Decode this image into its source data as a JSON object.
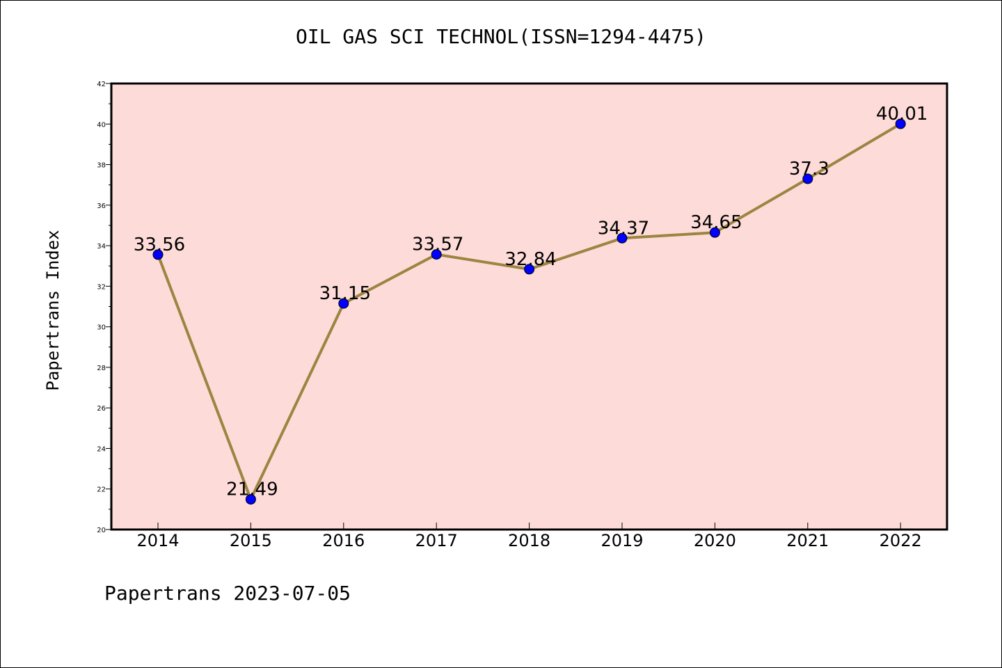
{
  "chart_data": {
    "type": "line",
    "title": "OIL GAS SCI TECHNOL(ISSN=1294-4475)",
    "ylabel": "Papertrans Index",
    "xlabel": "",
    "categories": [
      "2014",
      "2015",
      "2016",
      "2017",
      "2018",
      "2019",
      "2020",
      "2021",
      "2022"
    ],
    "values": [
      33.56,
      21.49,
      31.15,
      33.57,
      32.84,
      34.37,
      34.65,
      37.3,
      40.01
    ],
    "data_labels": [
      "33.56",
      "21.49",
      "31.15",
      "33.57",
      "32.84",
      "34.37",
      "34.65",
      "37.3",
      "40.01"
    ],
    "ylim": [
      20,
      42
    ],
    "yticks": [
      "20",
      "22",
      "24",
      "26",
      "28",
      "30",
      "32",
      "34",
      "36",
      "38",
      "40",
      "42"
    ],
    "grid": false,
    "colors": {
      "plot_background": "#fddbd8",
      "line": "#9b8541",
      "marker": "#0000ff"
    }
  },
  "footer": "Papertrans 2023-07-05"
}
